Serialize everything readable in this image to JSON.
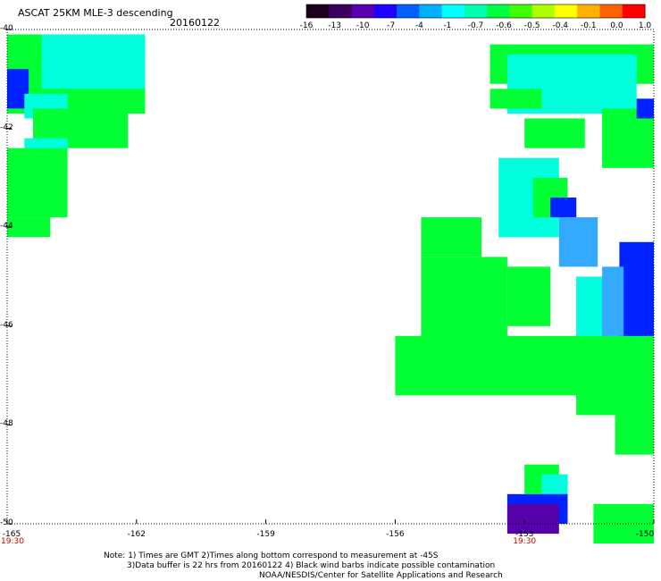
{
  "header": {
    "title": "ASCAT 25KM MLE-3 descending",
    "date": "20160122"
  },
  "colorbar": {
    "labels": [
      "-16",
      "-13",
      "-10",
      "-7",
      "-4",
      "-1",
      "-0.7",
      "-0.6",
      "-0.5",
      "-0.4",
      "-0.1",
      "0.0",
      "1.0"
    ],
    "colors": [
      "#1a001a",
      "#3a0060",
      "#5a00b0",
      "#2000ff",
      "#0060ff",
      "#00b0ff",
      "#00ffff",
      "#00ffb0",
      "#00ff40",
      "#40ff00",
      "#b0ff00",
      "#ffff00",
      "#ffb000",
      "#ff6000",
      "#ff0000"
    ]
  },
  "axes": {
    "y_ticks": [
      "-40",
      "-42",
      "-44",
      "-46",
      "-48",
      "-50"
    ],
    "x_ticks": [
      "-165",
      "-162",
      "-159",
      "-156",
      "-153",
      "-150"
    ],
    "time_labels": [
      "19:30",
      "19:30"
    ]
  },
  "map_data": {
    "lon_range": [
      -165,
      -150
    ],
    "lat_range": [
      -50,
      -40
    ],
    "colors": {
      "green": "#00ff33",
      "cyan": "#00ffdd",
      "lightblue": "#33aaff",
      "blue": "#0022ff",
      "violet": "#5500aa"
    },
    "swaths": [
      {
        "lon": -165.0,
        "lat": -40.1,
        "w": 3.2,
        "h": 1.6,
        "c": "green"
      },
      {
        "lon": -164.2,
        "lat": -40.1,
        "w": 2.4,
        "h": 1.1,
        "c": "cyan"
      },
      {
        "lon": -165.0,
        "lat": -40.8,
        "w": 0.5,
        "h": 0.8,
        "c": "blue"
      },
      {
        "lon": -164.6,
        "lat": -41.3,
        "w": 1.0,
        "h": 0.5,
        "c": "cyan"
      },
      {
        "lon": -164.4,
        "lat": -41.6,
        "w": 2.2,
        "h": 0.8,
        "c": "green"
      },
      {
        "lon": -164.6,
        "lat": -42.2,
        "w": 1.0,
        "h": 0.6,
        "c": "cyan"
      },
      {
        "lon": -165.0,
        "lat": -42.4,
        "w": 1.4,
        "h": 1.4,
        "c": "green"
      },
      {
        "lon": -165.0,
        "lat": -43.8,
        "w": 1.0,
        "h": 0.4,
        "c": "green"
      },
      {
        "lon": -153.8,
        "lat": -40.3,
        "w": 3.8,
        "h": 0.8,
        "c": "green"
      },
      {
        "lon": -153.4,
        "lat": -40.5,
        "w": 3.0,
        "h": 1.2,
        "c": "cyan"
      },
      {
        "lon": -153.8,
        "lat": -41.2,
        "w": 1.2,
        "h": 0.4,
        "c": "green"
      },
      {
        "lon": -151.2,
        "lat": -41.6,
        "w": 1.2,
        "h": 1.2,
        "c": "green"
      },
      {
        "lon": -150.4,
        "lat": -41.4,
        "w": 0.4,
        "h": 0.4,
        "c": "blue"
      },
      {
        "lon": -153.0,
        "lat": -41.8,
        "w": 1.4,
        "h": 0.6,
        "c": "green"
      },
      {
        "lon": -153.6,
        "lat": -42.6,
        "w": 1.4,
        "h": 1.6,
        "c": "cyan"
      },
      {
        "lon": -152.8,
        "lat": -43.0,
        "w": 0.8,
        "h": 0.8,
        "c": "green"
      },
      {
        "lon": -152.4,
        "lat": -43.4,
        "w": 0.6,
        "h": 0.4,
        "c": "blue"
      },
      {
        "lon": -152.2,
        "lat": -43.8,
        "w": 0.9,
        "h": 1.0,
        "c": "lightblue"
      },
      {
        "lon": -155.4,
        "lat": -43.8,
        "w": 1.4,
        "h": 0.8,
        "c": "green"
      },
      {
        "lon": -155.4,
        "lat": -44.6,
        "w": 2.0,
        "h": 2.4,
        "c": "green"
      },
      {
        "lon": -153.4,
        "lat": -44.8,
        "w": 1.0,
        "h": 1.2,
        "c": "green"
      },
      {
        "lon": -151.8,
        "lat": -45.0,
        "w": 1.8,
        "h": 1.6,
        "c": "cyan"
      },
      {
        "lon": -150.8,
        "lat": -44.3,
        "w": 0.8,
        "h": 2.4,
        "c": "blue"
      },
      {
        "lon": -151.2,
        "lat": -44.8,
        "w": 0.5,
        "h": 1.4,
        "c": "lightblue"
      },
      {
        "lon": -156.0,
        "lat": -46.2,
        "w": 6.0,
        "h": 1.2,
        "c": "green"
      },
      {
        "lon": -151.8,
        "lat": -46.6,
        "w": 1.8,
        "h": 1.2,
        "c": "green"
      },
      {
        "lon": -150.9,
        "lat": -47.6,
        "w": 0.9,
        "h": 1.0,
        "c": "green"
      },
      {
        "lon": -153.0,
        "lat": -48.8,
        "w": 0.8,
        "h": 0.6,
        "c": "green"
      },
      {
        "lon": -152.6,
        "lat": -49.0,
        "w": 0.6,
        "h": 0.6,
        "c": "cyan"
      },
      {
        "lon": -153.4,
        "lat": -49.4,
        "w": 1.4,
        "h": 0.6,
        "c": "blue"
      },
      {
        "lon": -153.4,
        "lat": -49.6,
        "w": 1.2,
        "h": 0.6,
        "c": "violet"
      },
      {
        "lon": -151.4,
        "lat": -49.6,
        "w": 1.4,
        "h": 0.8,
        "c": "green"
      }
    ]
  },
  "notes": {
    "line1": "Note: 1) Times are GMT 2)Times along bottom correspond to measurement at -45S",
    "line2": "3)Data buffer is 22 hrs from 20160122 4) Black wind barbs indicate possible contamination",
    "line3": "NOAA/NESDIS/Center for Satellite Applications and Research"
  }
}
